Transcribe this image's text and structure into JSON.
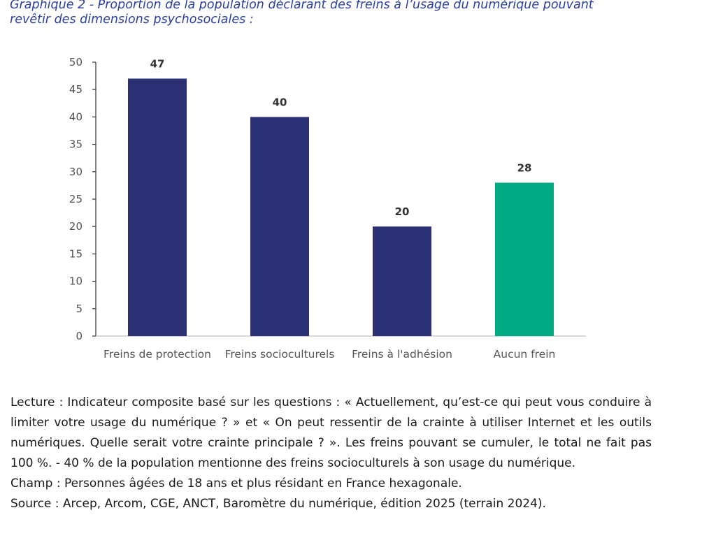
{
  "caption": {
    "line1": "Graphique 2 - Proportion de la population déclarant des freins à l’usage du numérique pouvant",
    "line2": "revêtir des dimensions psychosociales :"
  },
  "colors": {
    "primary_bar": "#2b2f73",
    "accent_bar": "#00ab84",
    "axis": "#333333"
  },
  "chart_data": {
    "type": "bar",
    "title": "",
    "xlabel": "",
    "ylabel": "",
    "categories": [
      "Freins de protection",
      "Freins socioculturels",
      "Freins à l'adhésion",
      "Aucun frein"
    ],
    "values": [
      47,
      40,
      20,
      28
    ],
    "data_labels": [
      "47",
      "40",
      "20",
      "28"
    ],
    "bar_colors": [
      "#2b2f73",
      "#2b2f73",
      "#2b2f73",
      "#00ab84"
    ],
    "ylim": [
      0,
      50
    ],
    "yticks": [
      0,
      5,
      10,
      15,
      20,
      25,
      30,
      35,
      40,
      45,
      50
    ],
    "grid": false,
    "legend": "none"
  },
  "notes": {
    "lecture": "Lecture : Indicateur composite basé sur les questions : « Actuellement, qu’est-ce qui peut vous conduire à limiter votre usage du numérique ? » et « On peut ressentir de la crainte à utiliser Internet et les outils numériques. Quelle serait votre crainte principale ? ». Les freins pouvant se cumuler, le total ne fait pas 100 %. - 40 % de la population mentionne des freins socioculturels à son usage du numérique.",
    "champ": "Champ : Personnes âgées de 18 ans et plus résidant en France hexagonale.",
    "source": "Source : Arcep, Arcom, CGE, ANCT, Baromètre du numérique, édition 2025 (terrain 2024)."
  }
}
